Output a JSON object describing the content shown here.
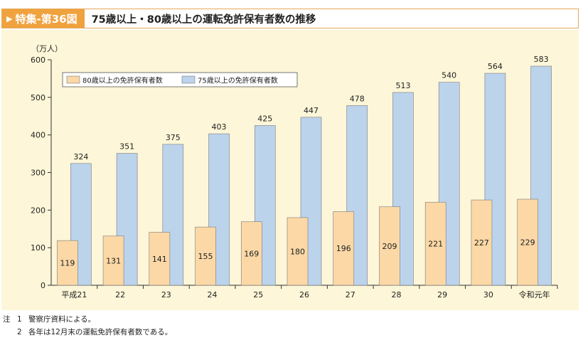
{
  "header": {
    "label": "特集-第36図",
    "title": "75歳以上・80歳以上の運転免許保有者数の推移"
  },
  "colors": {
    "bar75": "#bcd3ec",
    "bar80": "#fbd8a6",
    "bar_stroke": "#7a7a7a",
    "panel_bg": "#fdf6d8",
    "header_accent": "#f0a23e"
  },
  "chart_data": {
    "type": "bar",
    "unit_label": "（万人）",
    "categories": [
      "平成21",
      "22",
      "23",
      "24",
      "25",
      "26",
      "27",
      "28",
      "29",
      "30",
      "令和元年"
    ],
    "series": [
      {
        "name": "80歳以上の免許保有者数",
        "values": [
          119,
          131,
          141,
          155,
          169,
          180,
          196,
          209,
          221,
          227,
          229
        ]
      },
      {
        "name": "75歳以上の免許保有者数",
        "values": [
          324,
          351,
          375,
          403,
          425,
          447,
          478,
          513,
          540,
          564,
          583
        ]
      }
    ],
    "ylim": [
      0,
      600
    ],
    "yticks": [
      0,
      100,
      200,
      300,
      400,
      500,
      600
    ],
    "legend_position": "top-left",
    "grid": false
  },
  "notes": {
    "prefix": "注",
    "items": [
      {
        "num": "1",
        "text": "警察庁資料による。"
      },
      {
        "num": "2",
        "text": "各年は12月末の運転免許保有者数である。"
      }
    ]
  }
}
